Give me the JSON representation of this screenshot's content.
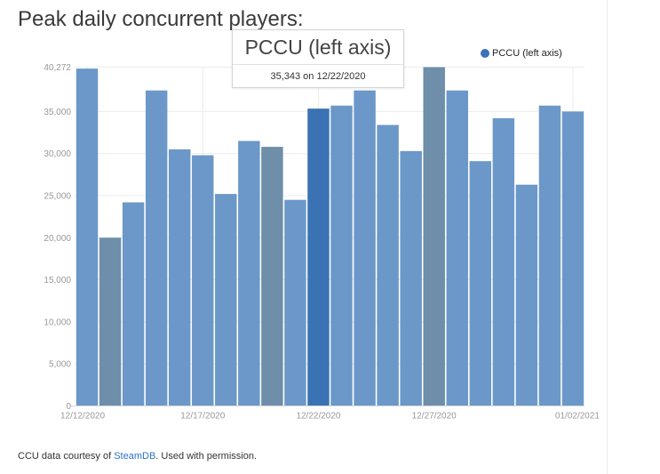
{
  "title": "Peak daily concurrent players:",
  "legend": {
    "label": "PCCU (left axis)"
  },
  "tooltip": {
    "title": "PCCU (left axis)",
    "value_text": "35,343 on 12/22/2020"
  },
  "footer": {
    "prefix": "CCU data courtesy of ",
    "link": "SteamDB",
    "suffix": ". Used with permission."
  },
  "colors": {
    "bar": "#6b98c9",
    "bar_highlight": "#3a72b3",
    "bar_muted": "#6e8eaa",
    "grid": "#ececec",
    "axis": "#d6d6d6",
    "tick_text": "#999999"
  },
  "chart_data": {
    "type": "bar",
    "series": [
      {
        "name": "PCCU (left axis)",
        "values": [
          40100,
          20000,
          24200,
          37500,
          30500,
          29800,
          25200,
          31500,
          30800,
          24500,
          35343,
          35700,
          37500,
          33400,
          30300,
          40272,
          37500,
          29100,
          34200,
          26300,
          35700,
          35000
        ]
      }
    ],
    "x": [
      "12/12/2020",
      "12/13/2020",
      "12/14/2020",
      "12/15/2020",
      "12/16/2020",
      "12/17/2020",
      "12/18/2020",
      "12/19/2020",
      "12/20/2020",
      "12/21/2020",
      "12/22/2020",
      "12/23/2020",
      "12/24/2020",
      "12/25/2020",
      "12/26/2020",
      "12/27/2020",
      "12/28/2020",
      "12/29/2020",
      "12/30/2020",
      "12/31/2020",
      "01/01/2021",
      "01/02/2021"
    ],
    "x_tick_labels": [
      {
        "index": 0,
        "label": "12/12/2020"
      },
      {
        "index": 5,
        "label": "12/17/2020"
      },
      {
        "index": 10,
        "label": "12/22/2020"
      },
      {
        "index": 15,
        "label": "12/27/2020"
      },
      {
        "index": 21,
        "label": "01/02/2021"
      }
    ],
    "y_ticks": [
      0,
      5000,
      10000,
      15000,
      20000,
      25000,
      30000,
      35000
    ],
    "y_max_label": 40272,
    "ylim": [
      0,
      40272
    ],
    "highlight_index": 10,
    "muted_indices": [
      1,
      8,
      15
    ],
    "grid": true,
    "legend_position": "top-right"
  }
}
